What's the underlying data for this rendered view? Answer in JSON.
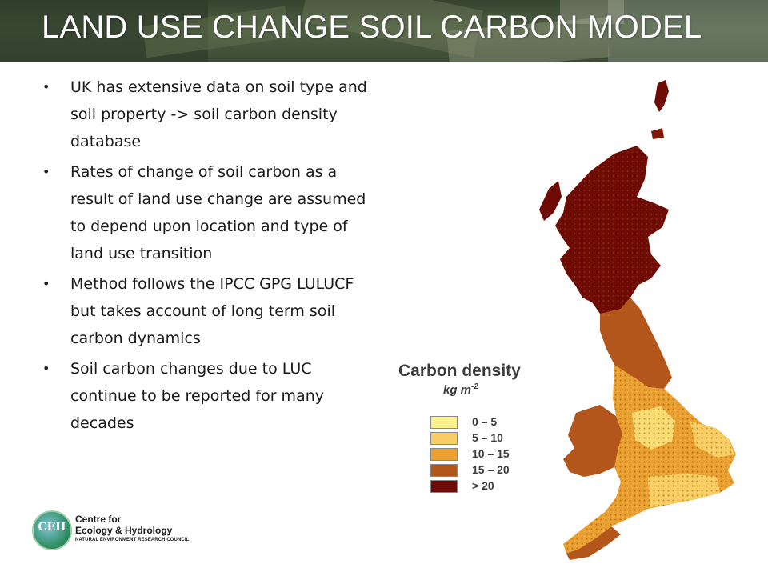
{
  "slide": {
    "title": "LAND USE CHANGE SOIL CARBON MODEL",
    "bullets": [
      "UK has extensive data on soil type and soil property -> soil carbon density database",
      "Rates of change of soil carbon as a result of land use change are assumed to depend upon location and type of land use transition",
      "Method follows the IPCC GPG LULUCF but takes account of long term soil carbon dynamics",
      "Soil carbon changes due to LUC continue to be reported for many decades"
    ]
  },
  "legend": {
    "title": "Carbon density",
    "unit_base": "kg m",
    "unit_exp": "-2",
    "classes": [
      {
        "label": "0  –  5",
        "color": "#fdf38e"
      },
      {
        "label": "5 – 10",
        "color": "#f8cd63"
      },
      {
        "label": "10 – 15",
        "color": "#eaa031"
      },
      {
        "label": "15 – 20",
        "color": "#b3561c"
      },
      {
        "label": "> 20",
        "color": "#6e0b04"
      }
    ]
  },
  "logo": {
    "abbr": "CEH",
    "line1": "Centre for",
    "line2": "Ecology & Hydrology",
    "line3": "NATURAL ENVIRONMENT RESEARCH COUNCIL"
  }
}
